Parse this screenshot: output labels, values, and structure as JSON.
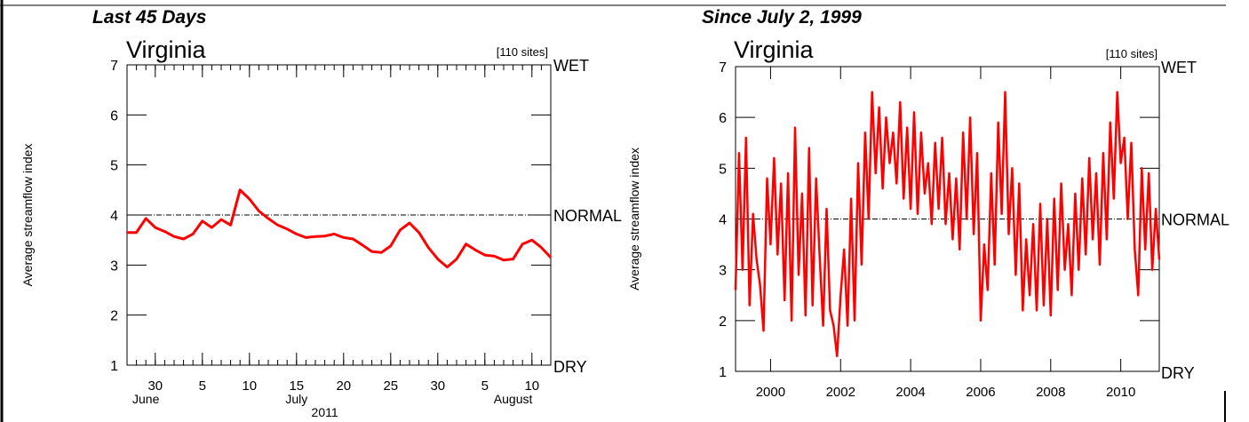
{
  "colors": {
    "series": "#ff0000",
    "axis": "#000000",
    "normal_line": "#000000",
    "background": "#ffffff"
  },
  "chart_data": [
    {
      "type": "line",
      "panel_heading": "Last 45 Days",
      "title": "Virginia",
      "site_count": "[110 sites]",
      "ylabel": "Average streamflow index",
      "ylim": [
        1,
        7
      ],
      "yticks": [
        "1",
        "2",
        "3",
        "4",
        "5",
        "6",
        "7"
      ],
      "right_labels": {
        "top": "WET",
        "middle": "NORMAL",
        "bottom": "DRY"
      },
      "normal_value": 4,
      "xlim": [
        0,
        45
      ],
      "xticks": [
        {
          "x": 3,
          "label": "30"
        },
        {
          "x": 8,
          "label": "5"
        },
        {
          "x": 13,
          "label": "10"
        },
        {
          "x": 18,
          "label": "15"
        },
        {
          "x": 23,
          "label": "20"
        },
        {
          "x": 28,
          "label": "25"
        },
        {
          "x": 33,
          "label": "30"
        },
        {
          "x": 38,
          "label": "5"
        },
        {
          "x": 43,
          "label": "10"
        }
      ],
      "month_labels": [
        {
          "x": 2,
          "label": "June"
        },
        {
          "x": 18,
          "label": "July"
        },
        {
          "x": 41,
          "label": "August"
        }
      ],
      "year_label": {
        "x": 21,
        "label": "2011"
      },
      "grid": false,
      "series": [
        {
          "x": [
            0,
            1,
            2,
            3,
            4,
            5,
            6,
            7,
            8,
            9,
            10,
            11,
            12,
            13,
            14,
            15,
            16,
            17,
            18,
            19,
            20,
            21,
            22,
            23,
            24,
            25,
            26,
            27,
            28,
            29,
            30,
            31,
            32,
            33,
            34,
            35,
            36,
            37,
            38,
            39,
            40,
            41,
            42,
            43,
            44,
            45
          ],
          "values": [
            3.65,
            3.65,
            3.93,
            3.75,
            3.67,
            3.57,
            3.52,
            3.62,
            3.88,
            3.75,
            3.91,
            3.8,
            4.5,
            4.32,
            4.08,
            3.93,
            3.8,
            3.72,
            3.62,
            3.55,
            3.57,
            3.58,
            3.62,
            3.55,
            3.52,
            3.4,
            3.27,
            3.25,
            3.38,
            3.7,
            3.84,
            3.65,
            3.35,
            3.12,
            2.96,
            3.12,
            3.42,
            3.3,
            3.2,
            3.18,
            3.1,
            3.12,
            3.42,
            3.5,
            3.35,
            3.15
          ]
        }
      ]
    },
    {
      "type": "line",
      "panel_heading": "Since July 2, 1999",
      "title": "Virginia",
      "site_count": "[110 sites]",
      "ylabel": "Average streamflow index",
      "ylim": [
        1,
        7
      ],
      "yticks": [
        "1",
        "2",
        "3",
        "4",
        "5",
        "6",
        "7"
      ],
      "right_labels": {
        "top": "WET",
        "middle": "NORMAL",
        "bottom": "DRY"
      },
      "normal_value": 4,
      "xlim": [
        1999.0,
        2011.1
      ],
      "xticks": [
        {
          "x": 2000,
          "label": "2000"
        },
        {
          "x": 2002,
          "label": "2002"
        },
        {
          "x": 2004,
          "label": "2004"
        },
        {
          "x": 2006,
          "label": "2006"
        },
        {
          "x": 2008,
          "label": "2008"
        },
        {
          "x": 2010,
          "label": "2010"
        }
      ],
      "grid": false,
      "series": [
        {
          "x": [
            1999.0,
            1999.1,
            1999.2,
            1999.3,
            1999.4,
            1999.5,
            1999.6,
            1999.7,
            1999.8,
            1999.9,
            2000.0,
            2000.1,
            2000.2,
            2000.3,
            2000.4,
            2000.5,
            2000.6,
            2000.7,
            2000.8,
            2000.9,
            2001.0,
            2001.1,
            2001.2,
            2001.3,
            2001.4,
            2001.5,
            2001.6,
            2001.7,
            2001.8,
            2001.9,
            2002.0,
            2002.1,
            2002.2,
            2002.3,
            2002.4,
            2002.5,
            2002.6,
            2002.7,
            2002.8,
            2002.9,
            2003.0,
            2003.1,
            2003.2,
            2003.3,
            2003.4,
            2003.5,
            2003.6,
            2003.7,
            2003.8,
            2003.9,
            2004.0,
            2004.1,
            2004.2,
            2004.3,
            2004.4,
            2004.5,
            2004.6,
            2004.7,
            2004.8,
            2004.9,
            2005.0,
            2005.1,
            2005.2,
            2005.3,
            2005.4,
            2005.5,
            2005.6,
            2005.7,
            2005.8,
            2005.9,
            2006.0,
            2006.1,
            2006.2,
            2006.3,
            2006.4,
            2006.5,
            2006.6,
            2006.7,
            2006.8,
            2006.9,
            2007.0,
            2007.1,
            2007.2,
            2007.3,
            2007.4,
            2007.5,
            2007.6,
            2007.7,
            2007.8,
            2007.9,
            2008.0,
            2008.1,
            2008.2,
            2008.3,
            2008.4,
            2008.5,
            2008.6,
            2008.7,
            2008.8,
            2008.9,
            2009.0,
            2009.1,
            2009.2,
            2009.3,
            2009.4,
            2009.5,
            2009.6,
            2009.7,
            2009.8,
            2009.9,
            2010.0,
            2010.1,
            2010.2,
            2010.3,
            2010.4,
            2010.5,
            2010.6,
            2010.7,
            2010.8,
            2010.9,
            2011.0,
            2011.1
          ],
          "values": [
            2.6,
            5.3,
            3.0,
            5.6,
            2.3,
            4.1,
            3.2,
            2.7,
            1.8,
            4.8,
            3.5,
            5.2,
            3.3,
            4.7,
            2.4,
            4.9,
            2.0,
            5.8,
            2.9,
            4.5,
            2.1,
            5.4,
            2.3,
            4.8,
            3.3,
            1.9,
            4.2,
            2.2,
            1.9,
            1.3,
            2.5,
            3.4,
            1.9,
            4.4,
            2.0,
            5.1,
            3.1,
            5.7,
            4.0,
            6.5,
            4.9,
            6.2,
            4.6,
            6.0,
            5.1,
            5.7,
            4.7,
            6.3,
            4.4,
            5.8,
            4.2,
            6.1,
            4.1,
            5.7,
            4.5,
            5.1,
            3.9,
            5.5,
            4.2,
            5.6,
            3.9,
            4.9,
            3.6,
            4.8,
            3.4,
            5.7,
            4.0,
            6.0,
            3.7,
            5.3,
            2.0,
            3.5,
            2.6,
            4.9,
            3.1,
            5.9,
            4.1,
            6.5,
            3.7,
            5.0,
            2.9,
            4.7,
            2.2,
            3.6,
            2.5,
            3.9,
            2.2,
            4.3,
            2.3,
            4.0,
            2.1,
            4.4,
            2.6,
            4.7,
            3.0,
            3.9,
            2.5,
            4.5,
            3.0,
            4.8,
            3.3,
            5.2,
            3.6,
            4.9,
            3.1,
            5.3,
            3.6,
            5.9,
            4.4,
            6.5,
            5.1,
            5.6,
            4.0,
            5.5,
            3.4,
            2.5,
            5.0,
            3.4,
            4.9,
            3.0,
            4.2,
            3.2
          ]
        }
      ]
    }
  ]
}
